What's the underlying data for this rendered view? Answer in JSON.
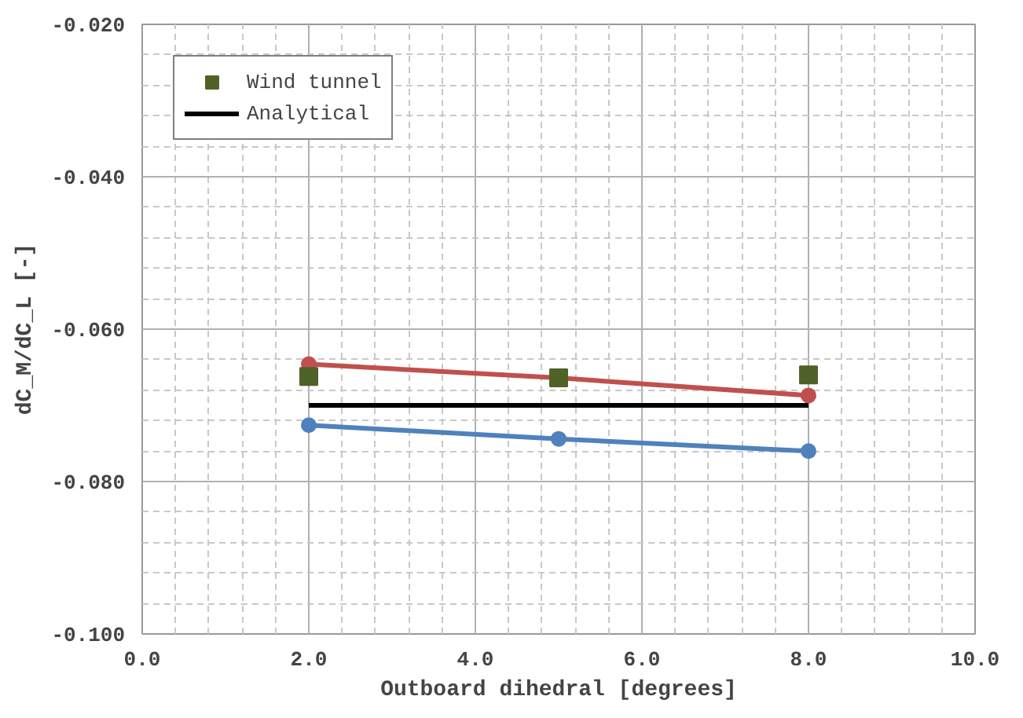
{
  "chart_data": {
    "type": "line",
    "xlabel": "Outboard dihedral [degrees]",
    "ylabel": "dC_M/dC_L [-]",
    "x": [
      2,
      5,
      8
    ],
    "series": [
      {
        "name": "Wind tunnel",
        "type": "scatter",
        "marker": "square",
        "color": "#4f6228",
        "values": [
          -0.0662,
          -0.0664,
          -0.066
        ]
      },
      {
        "name": "Analytical",
        "color": "#000000",
        "marker": "none",
        "values": [
          -0.07,
          -0.07,
          -0.07
        ]
      },
      {
        "color": "#4f81bd",
        "marker": "circle",
        "values": [
          -0.0726,
          -0.0744,
          -0.076
        ]
      },
      {
        "color": "#c0504d",
        "marker": "circle",
        "values": [
          -0.0646,
          -0.0664,
          -0.0687
        ]
      }
    ],
    "xlim": [
      0,
      10
    ],
    "ylim": [
      -0.1,
      -0.02
    ],
    "xticks": [
      {
        "value": 0,
        "label": "0.0"
      },
      {
        "value": 2,
        "label": "2.0"
      },
      {
        "value": 4,
        "label": "4.0"
      },
      {
        "value": 6,
        "label": "6.0"
      },
      {
        "value": 8,
        "label": "8.0"
      },
      {
        "value": 10,
        "label": "10.0"
      }
    ],
    "yticks": [
      {
        "value": -0.1,
        "label": "-0.100"
      },
      {
        "value": -0.08,
        "label": "-0.080"
      },
      {
        "value": -0.06,
        "label": "-0.060"
      },
      {
        "value": -0.04,
        "label": "-0.040"
      },
      {
        "value": -0.02,
        "label": "-0.020"
      }
    ],
    "grid": true,
    "legend": "top left"
  }
}
